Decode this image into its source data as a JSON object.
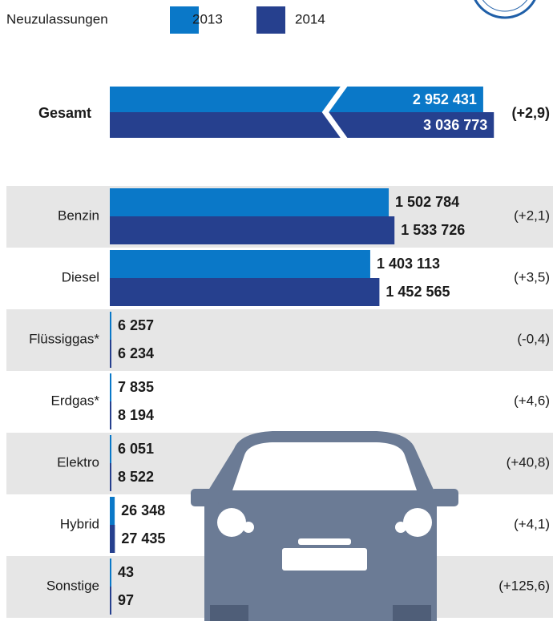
{
  "chart_data": {
    "type": "bar",
    "legend_title": "Neuzulassungen",
    "series": [
      {
        "name": "2013",
        "color": "#0a78c8",
        "values": [
          1502784,
          1403113,
          6257,
          7835,
          6051,
          26348,
          43
        ],
        "value_labels": [
          "1 502 784",
          "1 403 113",
          "6 257",
          "7 835",
          "6 051",
          "26 348",
          "43"
        ]
      },
      {
        "name": "2014",
        "color": "#26408e",
        "values": [
          1533726,
          1452565,
          6234,
          8194,
          8522,
          27435,
          97
        ],
        "value_labels": [
          "1 533 726",
          "1 452 565",
          "6 234",
          "8 194",
          "8 522",
          "27 435",
          "97"
        ]
      }
    ],
    "categories": [
      "Benzin",
      "Diesel",
      "Flüssiggas*",
      "Erdgas*",
      "Elektro",
      "Hybrid",
      "Sonstige"
    ],
    "changes": [
      "(+2,1)",
      "(+3,5)",
      "(-0,4)",
      "(+4,6)",
      "(+40,8)",
      "(+4,1)",
      "(+125,6)"
    ],
    "xlim": [
      0,
      1500000
    ],
    "total": {
      "category": "Gesamt",
      "values": [
        2952431,
        3036773
      ],
      "value_labels": [
        "2 952 431",
        "3 036 773"
      ],
      "change": "(+2,9)",
      "xlim": [
        0,
        3200000
      ]
    }
  }
}
